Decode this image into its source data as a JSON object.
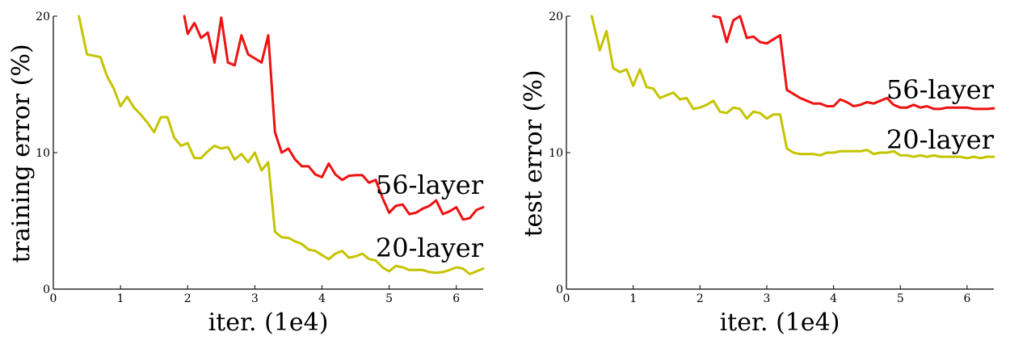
{
  "chart_data": [
    {
      "type": "line",
      "ylabel": "training error (%)",
      "xlabel": "iter. (1e4)",
      "xlim": [
        0,
        6.4
      ],
      "ylim": [
        0,
        20
      ],
      "xticks": [
        "0",
        "1",
        "2",
        "3",
        "4",
        "5",
        "6"
      ],
      "yticks": [
        "0",
        "10",
        "20"
      ],
      "grid": false,
      "legend": "inline-labels",
      "series": [
        {
          "name": "56-layer",
          "color": "#ee1111",
          "x": [
            1.95,
            2.0,
            2.1,
            2.2,
            2.3,
            2.4,
            2.5,
            2.6,
            2.7,
            2.8,
            2.9,
            3.0,
            3.1,
            3.2,
            3.3,
            3.4,
            3.5,
            3.6,
            3.7,
            3.8,
            3.9,
            4.0,
            4.1,
            4.2,
            4.3,
            4.4,
            4.5,
            4.6,
            4.7,
            4.8,
            4.9,
            5.0,
            5.1,
            5.2,
            5.3,
            5.4,
            5.5,
            5.6,
            5.7,
            5.8,
            5.9,
            6.0,
            6.1,
            6.2,
            6.3,
            6.4
          ],
          "y": [
            20.0,
            18.7,
            19.5,
            18.4,
            18.8,
            16.6,
            19.9,
            16.6,
            16.4,
            18.6,
            17.2,
            16.9,
            16.6,
            18.6,
            11.5,
            10.0,
            10.3,
            9.5,
            9.0,
            9.0,
            8.4,
            8.2,
            9.2,
            8.4,
            8.0,
            8.3,
            8.35,
            8.35,
            7.8,
            8.0,
            6.7,
            5.6,
            6.1,
            6.2,
            5.5,
            5.6,
            5.9,
            6.1,
            6.5,
            5.5,
            5.7,
            6.0,
            5.1,
            5.2,
            5.8,
            6.0
          ]
        },
        {
          "name": "20-layer",
          "color": "#c4c400",
          "x": [
            0.38,
            0.5,
            0.7,
            0.8,
            0.9,
            1.0,
            1.1,
            1.2,
            1.3,
            1.4,
            1.5,
            1.6,
            1.7,
            1.8,
            1.9,
            2.0,
            2.1,
            2.2,
            2.3,
            2.4,
            2.5,
            2.6,
            2.7,
            2.8,
            2.9,
            3.0,
            3.1,
            3.2,
            3.3,
            3.4,
            3.5,
            3.6,
            3.7,
            3.8,
            3.9,
            4.0,
            4.1,
            4.2,
            4.3,
            4.4,
            4.5,
            4.6,
            4.7,
            4.8,
            4.9,
            5.0,
            5.1,
            5.2,
            5.3,
            5.4,
            5.5,
            5.6,
            5.7,
            5.8,
            5.9,
            6.0,
            6.1,
            6.2,
            6.3,
            6.4
          ],
          "y": [
            20.0,
            17.2,
            17.0,
            15.6,
            14.7,
            13.4,
            14.1,
            13.3,
            12.8,
            12.2,
            11.5,
            12.6,
            12.6,
            11.1,
            10.5,
            10.7,
            9.6,
            9.6,
            10.1,
            10.5,
            10.3,
            10.4,
            9.5,
            9.9,
            9.3,
            10.0,
            8.7,
            9.3,
            4.2,
            3.8,
            3.75,
            3.5,
            3.3,
            2.9,
            2.8,
            2.5,
            2.2,
            2.6,
            2.8,
            2.3,
            2.4,
            2.6,
            2.2,
            2.1,
            1.6,
            1.3,
            1.7,
            1.6,
            1.4,
            1.4,
            1.4,
            1.25,
            1.2,
            1.25,
            1.4,
            1.6,
            1.5,
            1.1,
            1.3,
            1.5
          ]
        }
      ]
    },
    {
      "type": "line",
      "ylabel": "test error (%)",
      "xlabel": "iter. (1e4)",
      "xlim": [
        0,
        6.4
      ],
      "ylim": [
        0,
        20
      ],
      "xticks": [
        "0",
        "1",
        "2",
        "3",
        "4",
        "5",
        "6"
      ],
      "yticks": [
        "0",
        "10",
        "20"
      ],
      "grid": false,
      "legend": "inline-labels",
      "series": [
        {
          "name": "56-layer",
          "color": "#ee1111",
          "x": [
            2.2,
            2.3,
            2.4,
            2.5,
            2.6,
            2.7,
            2.8,
            2.9,
            3.0,
            3.1,
            3.2,
            3.3,
            3.4,
            3.5,
            3.6,
            3.7,
            3.8,
            3.9,
            4.0,
            4.1,
            4.2,
            4.3,
            4.4,
            4.5,
            4.6,
            4.7,
            4.8,
            4.9,
            5.0,
            5.1,
            5.2,
            5.3,
            5.4,
            5.5,
            5.6,
            5.7,
            5.8,
            5.9,
            6.0,
            6.1,
            6.2,
            6.3,
            6.4
          ],
          "y": [
            20.0,
            19.9,
            18.1,
            19.7,
            20.0,
            18.4,
            18.5,
            18.1,
            18.0,
            18.3,
            18.6,
            14.6,
            14.3,
            14.0,
            13.8,
            13.6,
            13.6,
            13.4,
            13.4,
            13.9,
            13.7,
            13.4,
            13.5,
            13.7,
            13.6,
            13.8,
            14.0,
            13.5,
            13.3,
            13.3,
            13.5,
            13.3,
            13.4,
            13.2,
            13.2,
            13.3,
            13.3,
            13.3,
            13.3,
            13.2,
            13.2,
            13.2,
            13.25
          ]
        },
        {
          "name": "20-layer",
          "color": "#c4c400",
          "x": [
            0.38,
            0.5,
            0.6,
            0.7,
            0.8,
            0.9,
            1.0,
            1.1,
            1.2,
            1.3,
            1.4,
            1.5,
            1.6,
            1.7,
            1.8,
            1.9,
            2.0,
            2.1,
            2.2,
            2.3,
            2.4,
            2.5,
            2.6,
            2.7,
            2.8,
            2.9,
            3.0,
            3.1,
            3.2,
            3.3,
            3.4,
            3.5,
            3.6,
            3.7,
            3.8,
            3.9,
            4.0,
            4.1,
            4.2,
            4.3,
            4.4,
            4.5,
            4.6,
            4.7,
            4.8,
            4.9,
            5.0,
            5.1,
            5.2,
            5.3,
            5.4,
            5.5,
            5.6,
            5.7,
            5.8,
            5.9,
            6.0,
            6.1,
            6.2,
            6.3,
            6.4
          ],
          "y": [
            20.0,
            17.5,
            18.9,
            16.2,
            15.9,
            16.1,
            14.9,
            16.1,
            14.8,
            14.7,
            14.0,
            14.2,
            14.4,
            13.9,
            14.0,
            13.2,
            13.3,
            13.5,
            13.8,
            13.0,
            12.9,
            13.3,
            13.2,
            12.5,
            13.0,
            12.9,
            12.5,
            12.8,
            12.8,
            10.3,
            10.0,
            9.9,
            9.9,
            9.9,
            9.8,
            10.0,
            10.0,
            10.1,
            10.1,
            10.1,
            10.1,
            10.2,
            9.9,
            10.0,
            10.0,
            10.1,
            9.8,
            9.8,
            9.7,
            9.8,
            9.7,
            9.8,
            9.7,
            9.7,
            9.7,
            9.7,
            9.6,
            9.7,
            9.6,
            9.7,
            9.7
          ]
        }
      ]
    }
  ]
}
